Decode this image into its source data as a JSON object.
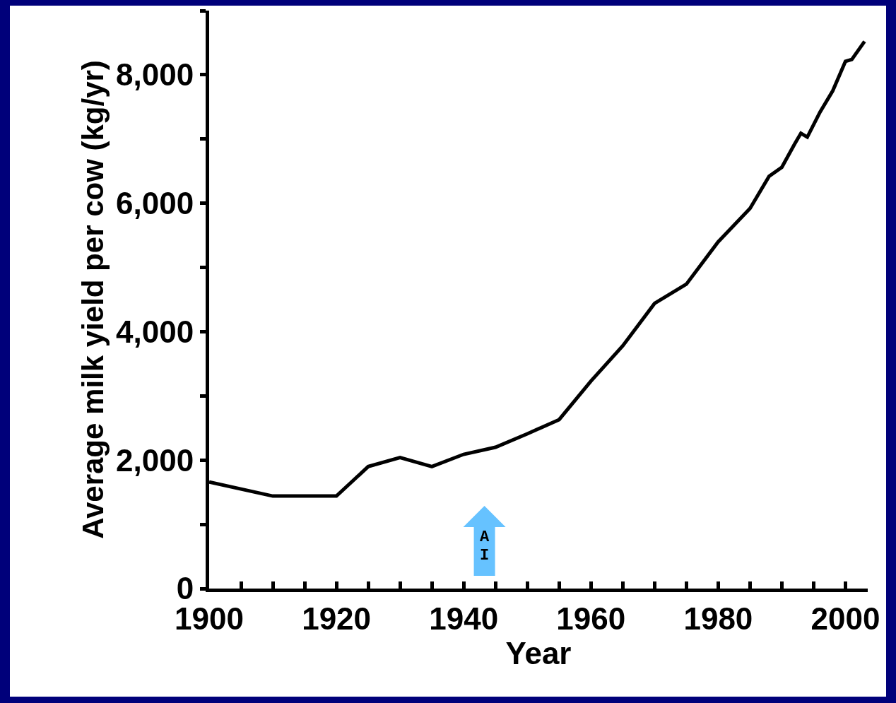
{
  "chart_data": {
    "type": "line",
    "xlabel": "Year",
    "ylabel": "Average milk yield per cow (kg/yr)",
    "x": [
      1900,
      1910,
      1920,
      1925,
      1930,
      1935,
      1940,
      1945,
      1950,
      1955,
      1960,
      1965,
      1970,
      1975,
      1980,
      1985,
      1988,
      1990,
      1992,
      1993,
      1994,
      1996,
      1998,
      2000,
      2001,
      2003
    ],
    "series": [
      {
        "color": "#000000",
        "values": [
          1660,
          1440,
          1440,
          1900,
          2040,
          1900,
          2090,
          2200,
          2410,
          2630,
          3230,
          3780,
          4440,
          4740,
          5400,
          5920,
          6420,
          6560,
          6920,
          7090,
          7030,
          7420,
          7750,
          8210,
          8240,
          8520
        ]
      }
    ],
    "xlim": [
      1900,
      2003.5
    ],
    "xticks": [
      1900,
      {
        "value": 1905,
        "label": null
      },
      {
        "value": 1910,
        "label": null
      },
      {
        "value": 1915,
        "label": null
      },
      1920,
      {
        "value": 1925,
        "label": null
      },
      {
        "value": 1930,
        "label": null
      },
      {
        "value": 1935,
        "label": null
      },
      1940,
      {
        "value": 1945,
        "label": null
      },
      {
        "value": 1950,
        "label": null
      },
      {
        "value": 1955,
        "label": null
      },
      1960,
      {
        "value": 1965,
        "label": null
      },
      {
        "value": 1970,
        "label": null
      },
      {
        "value": 1975,
        "label": null
      },
      1980,
      {
        "value": 1985,
        "label": null
      },
      {
        "value": 1990,
        "label": null
      },
      {
        "value": 1995,
        "label": null
      },
      2000
    ],
    "ylim": [
      0,
      9000
    ],
    "yticks": [
      0,
      {
        "value": 1000,
        "label": null
      },
      {
        "value": 2000,
        "label": "2,000"
      },
      {
        "value": 3000,
        "label": null
      },
      {
        "value": 4000,
        "label": "4,000"
      },
      {
        "value": 5000,
        "label": null
      },
      {
        "value": 6000,
        "label": "6,000"
      },
      {
        "value": 7000,
        "label": null
      },
      {
        "value": 8000,
        "label": "8,000"
      },
      {
        "value": 9000,
        "label": null
      }
    ],
    "grid": false,
    "marker": "none",
    "line_style": "solid",
    "annotations": [
      "AI"
    ]
  }
}
